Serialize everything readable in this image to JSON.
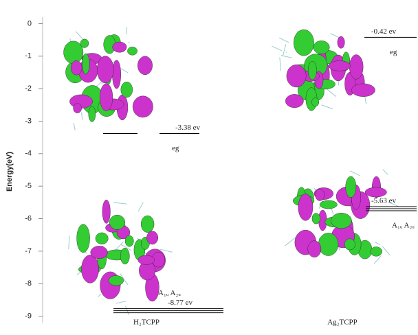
{
  "chart_data": {
    "type": "energy-level",
    "ylabel": "Energy(eV)",
    "ylim": [
      -9.2,
      0.2
    ],
    "yticks": [
      0,
      -1,
      -2,
      -3,
      -4,
      -5,
      -6,
      -7,
      -8,
      -9
    ],
    "categories": [
      "H₂TCPP",
      "Ag₂TCPP"
    ],
    "levels": [
      {
        "values": [
          -3.38,
          -0.42
        ],
        "value_labels": [
          "-3.38 ev",
          "-0.42 ev"
        ],
        "symmetry": [
          "eg",
          "eg"
        ]
      },
      {
        "values": [
          -8.77,
          -5.63
        ],
        "value_labels": [
          "-8.77 ev",
          "-5.63 ev"
        ],
        "symmetry": [
          "A₁ᵤ A₂ᵤ",
          "A₁ᵤ A₂ᵤ"
        ]
      }
    ]
  }
}
